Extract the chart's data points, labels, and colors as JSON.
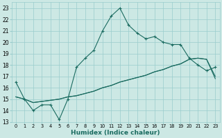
{
  "xlabel": "Humidex (Indice chaleur)",
  "bg_color": "#cce8e4",
  "grid_color": "#99cccc",
  "line_color": "#1a6b60",
  "xlim": [
    -0.5,
    23.5
  ],
  "ylim": [
    13,
    23.5
  ],
  "xticks": [
    0,
    1,
    2,
    3,
    4,
    5,
    6,
    7,
    8,
    9,
    10,
    11,
    12,
    13,
    14,
    15,
    16,
    17,
    18,
    19,
    20,
    21,
    22,
    23
  ],
  "yticks": [
    13,
    14,
    15,
    16,
    17,
    18,
    19,
    20,
    21,
    22,
    23
  ],
  "line1_x": [
    0,
    1,
    2,
    3,
    4,
    5,
    6,
    7,
    8,
    9,
    10,
    11,
    12,
    13,
    14,
    15,
    16,
    17,
    18,
    19,
    20,
    21,
    22,
    23
  ],
  "line1_y": [
    16.5,
    15.0,
    14.0,
    14.5,
    14.5,
    13.2,
    15.0,
    17.8,
    18.6,
    19.3,
    21.0,
    22.3,
    23.0,
    21.5,
    20.8,
    20.3,
    20.5,
    20.0,
    19.8,
    19.8,
    18.6,
    18.0,
    17.5,
    17.8
  ],
  "line2_x": [
    0,
    1,
    2,
    3,
    4,
    5,
    6,
    7,
    8,
    9,
    10,
    11,
    12,
    13,
    14,
    15,
    16,
    17,
    18,
    19,
    20,
    21,
    22,
    23
  ],
  "line2_y": [
    15.2,
    15.0,
    14.7,
    14.8,
    14.9,
    15.0,
    15.2,
    15.3,
    15.5,
    15.7,
    16.0,
    16.2,
    16.5,
    16.7,
    16.9,
    17.1,
    17.4,
    17.6,
    17.9,
    18.1,
    18.5,
    18.6,
    18.5,
    17.0
  ],
  "line3_x": [
    0,
    1,
    2,
    3,
    4,
    5,
    6,
    7,
    8,
    9,
    10,
    11,
    12,
    13,
    14,
    15,
    16,
    17,
    18,
    19,
    20,
    21,
    22,
    23
  ],
  "line3_y": [
    15.2,
    15.0,
    14.7,
    14.8,
    14.9,
    15.0,
    15.2,
    15.3,
    15.5,
    15.7,
    16.0,
    16.2,
    16.5,
    16.7,
    16.9,
    17.1,
    17.4,
    17.6,
    17.9,
    18.1,
    18.5,
    18.6,
    18.5,
    16.8
  ]
}
